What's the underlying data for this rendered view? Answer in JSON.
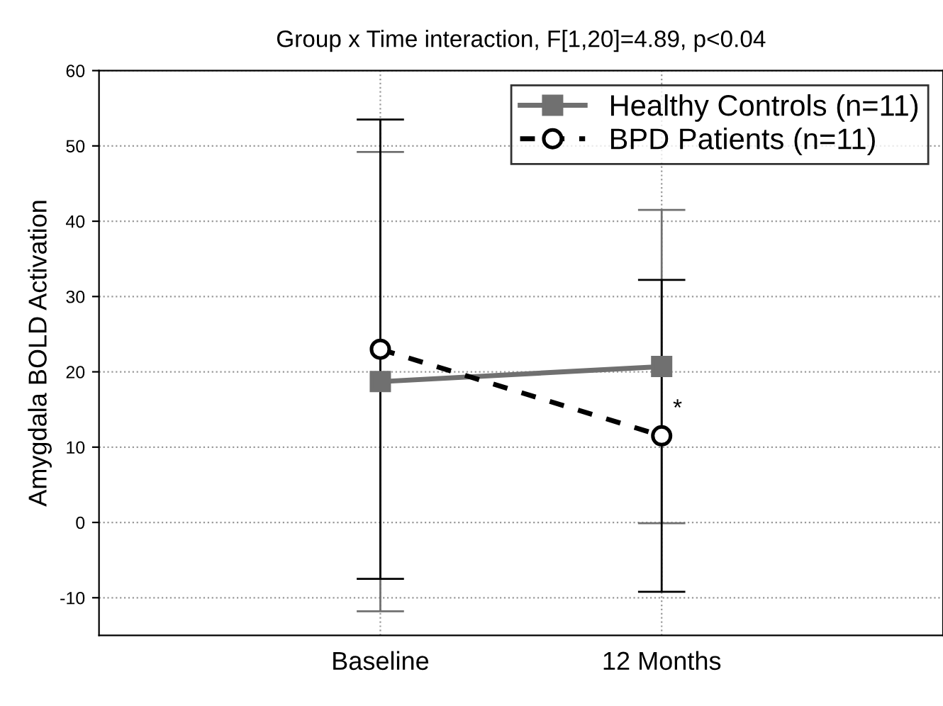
{
  "chart_data": {
    "type": "line",
    "title": "Group x Time interaction, F[1,20]=4.89, p<0.04",
    "ylabel": "Amygdala BOLD Activation",
    "categories": [
      "Baseline",
      "12 Months"
    ],
    "series": [
      {
        "name": "Healthy Controls (n=11)",
        "color": "#707070",
        "values": [
          18.7,
          20.7
        ],
        "errors": [
          30.5,
          20.8
        ],
        "marker": "square",
        "line_style": "solid"
      },
      {
        "name": "BPD Patients (n=11)",
        "color": "#000000",
        "values": [
          23.0,
          11.5
        ],
        "errors": [
          30.5,
          20.7
        ],
        "marker": "circle",
        "line_style": "dashed"
      }
    ],
    "ylim": [
      -15,
      60
    ],
    "yticks": [
      -10,
      0,
      10,
      20,
      30,
      40,
      50,
      60
    ],
    "grid": true,
    "legend": "top right",
    "annotations": [
      {
        "text": "*",
        "x": "12 Months",
        "y": 15
      }
    ]
  }
}
